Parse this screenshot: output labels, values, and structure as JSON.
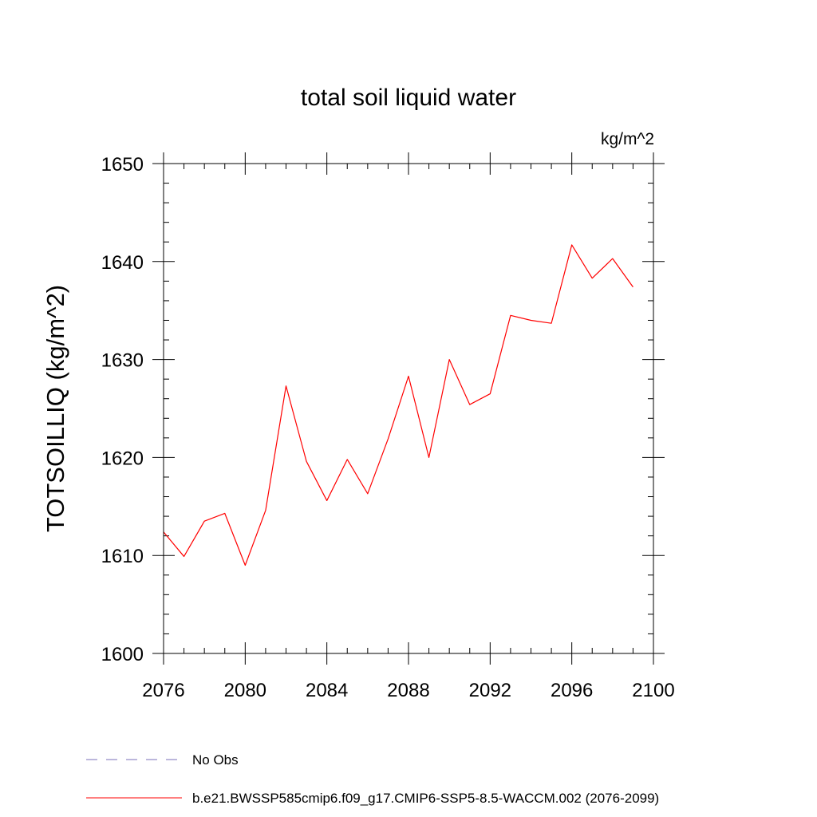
{
  "chart_data": {
    "type": "line",
    "title": "total soil liquid water",
    "units_label": "kg/m^2",
    "ylabel": "TOTSOILLIQ  (kg/m^2)",
    "xlabel": "",
    "xlim": [
      2076,
      2100
    ],
    "ylim": [
      1600,
      1650
    ],
    "x_ticks": [
      2076,
      2080,
      2084,
      2088,
      2092,
      2096,
      2100
    ],
    "y_ticks": [
      1600,
      1610,
      1620,
      1630,
      1640,
      1650
    ],
    "x_minor_step": 1,
    "y_minor_step": 2,
    "grid": false,
    "legend_position": "bottom",
    "series": [
      {
        "name": "b.e21.BWSSP585cmip6.f09_g17.CMIP6-SSP5-8.5-WACCM.002 (2076-2099)",
        "color": "#ff0000",
        "dash": "solid",
        "x": [
          2076,
          2077,
          2078,
          2079,
          2080,
          2081,
          2082,
          2083,
          2084,
          2085,
          2086,
          2087,
          2088,
          2089,
          2090,
          2091,
          2092,
          2093,
          2094,
          2095,
          2096,
          2097,
          2098,
          2099
        ],
        "y": [
          1612.4,
          1609.9,
          1613.5,
          1614.3,
          1609.0,
          1614.6,
          1627.3,
          1619.6,
          1615.6,
          1619.8,
          1616.3,
          1621.9,
          1628.3,
          1620.0,
          1630.0,
          1625.4,
          1626.5,
          1634.5,
          1634.0,
          1633.7,
          1641.7,
          1638.3,
          1640.3,
          1637.4
        ]
      }
    ],
    "legend": [
      {
        "label": "No Obs",
        "color": "#7a6fb8",
        "dash": "dashed"
      },
      {
        "label": "b.e21.BWSSP585cmip6.f09_g17.CMIP6-SSP5-8.5-WACCM.002 (2076-2099)",
        "color": "#ff0000",
        "dash": "solid"
      }
    ]
  }
}
